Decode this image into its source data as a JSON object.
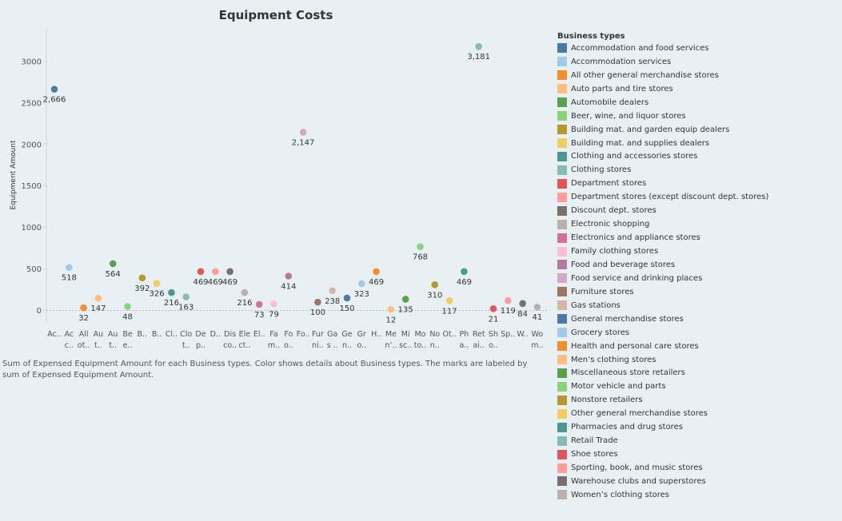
{
  "chart_data": {
    "type": "scatter",
    "title": "Equipment Costs",
    "ylabel": "Equipment Amount",
    "xlabel": "",
    "ylim": [
      -150,
      3400
    ],
    "yticks": [
      0,
      500,
      1000,
      1500,
      2000,
      2500,
      3000
    ],
    "grid": false,
    "zero_line": true,
    "legend_title": "Business types",
    "legend_position": "right",
    "categories": [
      {
        "name": "Accommodation and food services",
        "tick": [
          "Ac..",
          ""
        ],
        "value": 2666,
        "label": "2,666",
        "color": "#4e79a7"
      },
      {
        "name": "Accommodation services",
        "tick": [
          "Ac",
          "c.."
        ],
        "value": 518,
        "label": "518",
        "color": "#a0cbe8"
      },
      {
        "name": "All other general merchandise stores",
        "tick": [
          "All",
          "ot.."
        ],
        "value": 32,
        "label": "32",
        "color": "#f28e2b"
      },
      {
        "name": "Auto parts and tire stores",
        "tick": [
          "Au",
          "t.."
        ],
        "value": 147,
        "label": "147",
        "color": "#ffbe7d"
      },
      {
        "name": "Automobile dealers",
        "tick": [
          "Au",
          "t.."
        ],
        "value": 564,
        "label": "564",
        "color": "#59a14f"
      },
      {
        "name": "Beer, wine, and liquor stores",
        "tick": [
          "Be",
          "e.."
        ],
        "value": 48,
        "label": "48",
        "color": "#8cd17d"
      },
      {
        "name": "Building mat. and garden equip dealers",
        "tick": [
          "B..",
          ""
        ],
        "value": 392,
        "label": "392",
        "color": "#b6992d"
      },
      {
        "name": "Building mat. and supplies dealers",
        "tick": [
          "B..",
          ""
        ],
        "value": 326,
        "label": "326",
        "color": "#f1ce63"
      },
      {
        "name": "Clothing and accessories stores",
        "tick": [
          "Cl..",
          ""
        ],
        "value": 216,
        "label": "216",
        "color": "#499894"
      },
      {
        "name": "Clothing stores",
        "tick": [
          "Clo",
          "t.."
        ],
        "value": 163,
        "label": "163",
        "color": "#86bcb6"
      },
      {
        "name": "Department stores",
        "tick": [
          "De",
          "p.."
        ],
        "value": 469,
        "label": "469",
        "color": "#e15759"
      },
      {
        "name": "Department stores (except discount dept. stores)",
        "tick": [
          "D..",
          ""
        ],
        "value": 469,
        "label": "469",
        "color": "#ff9d9a"
      },
      {
        "name": "Discount dept. stores",
        "tick": [
          "Dis",
          "co.."
        ],
        "value": 469,
        "label": "469",
        "color": "#79706e"
      },
      {
        "name": "Electronic shopping",
        "tick": [
          "Ele",
          "ct.."
        ],
        "value": 216,
        "label": "216",
        "color": "#bab0ac"
      },
      {
        "name": "Electronics and appliance stores",
        "tick": [
          "El..",
          ""
        ],
        "value": 73,
        "label": "73",
        "color": "#d37295"
      },
      {
        "name": "Family clothing stores",
        "tick": [
          "Fa",
          "m.."
        ],
        "value": 79,
        "label": "79",
        "color": "#fabfd2"
      },
      {
        "name": "Food and beverage stores",
        "tick": [
          "Fo",
          "o.."
        ],
        "value": 414,
        "label": "414",
        "color": "#b07aa1"
      },
      {
        "name": "Food service and drinking places",
        "tick": [
          "Fo..",
          ""
        ],
        "value": 2147,
        "label": "2,147",
        "color": "#d4a6c8"
      },
      {
        "name": "Furniture stores",
        "tick": [
          "Fur",
          "ni.."
        ],
        "value": 100,
        "label": "100",
        "color": "#9d7660"
      },
      {
        "name": "Gas stations",
        "tick": [
          "Ga",
          "s .."
        ],
        "value": 238,
        "label": "238",
        "color": "#d7b5a6"
      },
      {
        "name": "General merchandise stores",
        "tick": [
          "Ge",
          "n.."
        ],
        "value": 150,
        "label": "150",
        "color": "#4e79a7"
      },
      {
        "name": "Grocery stores",
        "tick": [
          "Gr",
          "o.."
        ],
        "value": 323,
        "label": "323",
        "color": "#a0cbe8"
      },
      {
        "name": "Health and personal care stores",
        "tick": [
          "H..",
          ""
        ],
        "value": 469,
        "label": "469",
        "color": "#f28e2b"
      },
      {
        "name": "Men’s clothing stores",
        "tick": [
          "Me",
          "n’.."
        ],
        "value": 12,
        "label": "12",
        "color": "#ffbe7d"
      },
      {
        "name": "Miscellaneous store retailers",
        "tick": [
          "Mi",
          "sc.."
        ],
        "value": 135,
        "label": "135",
        "color": "#59a14f"
      },
      {
        "name": "Motor vehicle and parts",
        "tick": [
          "Mo",
          "to.."
        ],
        "value": 768,
        "label": "768",
        "color": "#8cd17d"
      },
      {
        "name": "Nonstore retailers",
        "tick": [
          "No",
          "n.."
        ],
        "value": 310,
        "label": "310",
        "color": "#b6992d"
      },
      {
        "name": "Other general merchandise stores",
        "tick": [
          "Ot..",
          ""
        ],
        "value": 117,
        "label": "117",
        "color": "#f1ce63"
      },
      {
        "name": "Pharmacies and drug stores",
        "tick": [
          "Ph",
          "a.."
        ],
        "value": 469,
        "label": "469",
        "color": "#499894"
      },
      {
        "name": "Retail Trade",
        "tick": [
          "Ret",
          "ai.."
        ],
        "value": 3181,
        "label": "3,181",
        "color": "#86bcb6"
      },
      {
        "name": "Shoe stores",
        "tick": [
          "Sh",
          "o.."
        ],
        "value": 21,
        "label": "21",
        "color": "#e15759"
      },
      {
        "name": "Sporting, book, and music stores",
        "tick": [
          "Sp..",
          ""
        ],
        "value": 119,
        "label": "119",
        "color": "#ff9d9a"
      },
      {
        "name": "Warehouse clubs and superstores",
        "tick": [
          "W..",
          ""
        ],
        "value": 84,
        "label": "84",
        "color": "#79706e"
      },
      {
        "name": "Women’s clothing stores",
        "tick": [
          "Wo",
          "m.."
        ],
        "value": 41,
        "label": "41",
        "color": "#bab0ac"
      }
    ]
  },
  "caption": "Sum of Expensed Equipment Amount for each Business types.  Color shows details about Business types.  The marks are labeled by sum of Expensed Equipment Amount."
}
